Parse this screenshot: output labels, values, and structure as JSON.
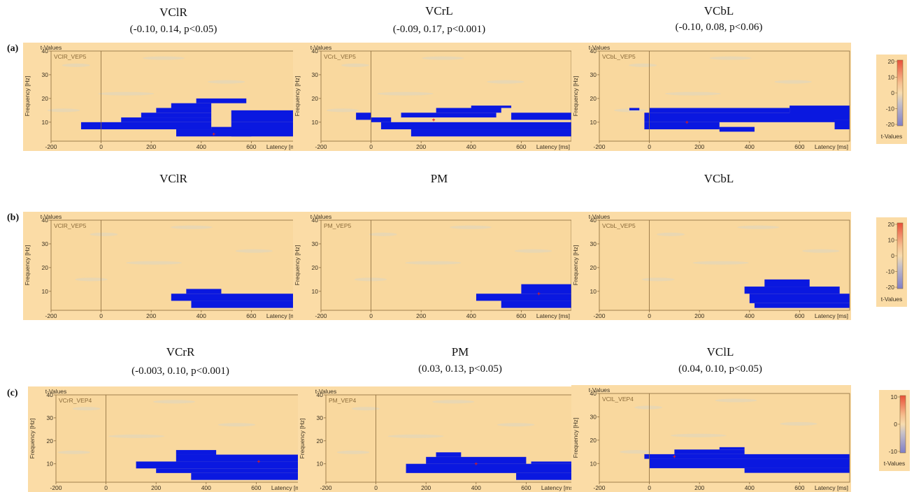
{
  "rows": [
    {
      "label": "(a)",
      "panels": [
        {
          "title": "VClR",
          "subtitle": "(-0.10, 0.14, p<0.05)",
          "inner_label": "VClR_VEP5"
        },
        {
          "title": "VCrL",
          "subtitle": "(-0.09, 0.17, p<0.001)",
          "inner_label": "VCrL_VEP5"
        },
        {
          "title": "VCbL",
          "subtitle": "(-0.10, 0.08, p<0.06)",
          "inner_label": "VCbL_VEP5"
        }
      ],
      "colorbar_ticks": [
        "20",
        "10",
        "0",
        "-10",
        "-20"
      ],
      "colorbar_label": "t-Values"
    },
    {
      "label": "(b)",
      "panels": [
        {
          "title": "VClR",
          "subtitle": "",
          "inner_label": "VClR_VEP5"
        },
        {
          "title": "PM",
          "subtitle": "",
          "inner_label": "PM_VEP5"
        },
        {
          "title": "VCbL",
          "subtitle": "",
          "inner_label": "VCbL_VEP5"
        }
      ],
      "colorbar_ticks": [
        "20",
        "10",
        "0",
        "-10",
        "-20"
      ],
      "colorbar_label": "t-Values"
    },
    {
      "label": "(c)",
      "panels": [
        {
          "title": "VCrR",
          "subtitle": "(-0.003, 0.10, p<0.001)",
          "inner_label": "VCrR_VEP4"
        },
        {
          "title": "PM",
          "subtitle": "(0.03, 0.13, p<0.05)",
          "inner_label": "PM_VEP4"
        },
        {
          "title": "VClL",
          "subtitle": "(0.04, 0.10, p<0.05)",
          "inner_label": "VClL_VEP4"
        }
      ],
      "colorbar_ticks": [
        "10",
        "0",
        "-10"
      ],
      "colorbar_label": "t-Values"
    }
  ],
  "axis_text": {
    "value_label": "t-Values",
    "ylabel": "Frequency [Hz]",
    "xlabel": "Latency [ms]",
    "x_ticks": [
      -200,
      0,
      200,
      400,
      600
    ],
    "y_ticks": [
      10,
      20,
      30,
      40
    ]
  },
  "colors": {
    "background": "#fbdca6",
    "plot_bg": "#f9d89e",
    "significant": "#0a18e0",
    "axis": "#8a6a3a",
    "marker": "#e0201a"
  },
  "chart_data": [
    {
      "type": "heatmap",
      "row": "a",
      "title": "VClR",
      "xlim": [
        -200,
        800
      ],
      "ylim": [
        2,
        40
      ],
      "significant_blocks": [
        [
          -80,
          440,
          7,
          10
        ],
        [
          80,
          440,
          10,
          12
        ],
        [
          160,
          440,
          12,
          14
        ],
        [
          220,
          440,
          14,
          16
        ],
        [
          280,
          440,
          16,
          18
        ],
        [
          380,
          580,
          18,
          20
        ],
        [
          520,
          800,
          10,
          15
        ],
        [
          520,
          800,
          4,
          10
        ],
        [
          300,
          600,
          4,
          7
        ],
        [
          440,
          600,
          7,
          8
        ]
      ],
      "marker": [
        450,
        5
      ]
    },
    {
      "type": "heatmap",
      "row": "a",
      "title": "VCrL",
      "xlim": [
        -200,
        800
      ],
      "ylim": [
        2,
        40
      ],
      "significant_blocks": [
        [
          -60,
          0,
          11,
          14
        ],
        [
          0,
          80,
          10,
          12
        ],
        [
          40,
          800,
          7,
          10
        ],
        [
          160,
          800,
          4,
          7
        ],
        [
          120,
          500,
          12,
          14
        ],
        [
          260,
          520,
          14,
          16
        ],
        [
          400,
          560,
          16,
          17
        ],
        [
          560,
          800,
          11,
          14
        ]
      ],
      "marker": [
        250,
        11
      ]
    },
    {
      "type": "heatmap",
      "row": "a",
      "title": "VCbL",
      "xlim": [
        -200,
        800
      ],
      "ylim": [
        2,
        40
      ],
      "significant_blocks": [
        [
          -80,
          -40,
          15,
          16
        ],
        [
          0,
          560,
          14,
          16
        ],
        [
          -20,
          740,
          10,
          14
        ],
        [
          -20,
          280,
          7,
          10
        ],
        [
          280,
          420,
          6,
          8
        ],
        [
          560,
          800,
          11,
          17
        ],
        [
          740,
          800,
          7,
          11
        ]
      ],
      "marker": [
        150,
        10
      ]
    },
    {
      "type": "heatmap",
      "row": "b",
      "title": "VClR",
      "xlim": [
        -200,
        800
      ],
      "ylim": [
        2,
        40
      ],
      "significant_blocks": [
        [
          280,
          800,
          6,
          9
        ],
        [
          340,
          480,
          9,
          11
        ],
        [
          360,
          800,
          3,
          6
        ]
      ]
    },
    {
      "type": "heatmap",
      "row": "b",
      "title": "PM",
      "xlim": [
        -200,
        800
      ],
      "ylim": [
        2,
        40
      ],
      "significant_blocks": [
        [
          420,
          800,
          6,
          9
        ],
        [
          520,
          800,
          3,
          6
        ],
        [
          600,
          800,
          9,
          13
        ]
      ],
      "marker": [
        670,
        9
      ]
    },
    {
      "type": "heatmap",
      "row": "b",
      "title": "VCbL",
      "xlim": [
        -200,
        800
      ],
      "ylim": [
        2,
        40
      ],
      "significant_blocks": [
        [
          380,
          760,
          9,
          12
        ],
        [
          460,
          640,
          12,
          15
        ],
        [
          400,
          800,
          5,
          9
        ],
        [
          420,
          800,
          3,
          5
        ]
      ]
    },
    {
      "type": "heatmap",
      "row": "c",
      "title": "VCrR",
      "xlim": [
        -200,
        800
      ],
      "ylim": [
        2,
        40
      ],
      "significant_blocks": [
        [
          120,
          780,
          8,
          11
        ],
        [
          200,
          780,
          6,
          8
        ],
        [
          280,
          800,
          11,
          14
        ],
        [
          340,
          800,
          3,
          6
        ],
        [
          280,
          440,
          14,
          16
        ]
      ],
      "marker": [
        610,
        11
      ]
    },
    {
      "type": "heatmap",
      "row": "c",
      "title": "PM",
      "xlim": [
        -200,
        800
      ],
      "ylim": [
        2,
        40
      ],
      "significant_blocks": [
        [
          120,
          800,
          6,
          10
        ],
        [
          200,
          600,
          10,
          13
        ],
        [
          240,
          340,
          13,
          15
        ],
        [
          560,
          800,
          3,
          6
        ],
        [
          620,
          800,
          10,
          11
        ]
      ],
      "marker": [
        400,
        10
      ]
    },
    {
      "type": "heatmap",
      "row": "c",
      "title": "VClL",
      "xlim": [
        -200,
        800
      ],
      "ylim": [
        2,
        40
      ],
      "significant_blocks": [
        [
          -20,
          800,
          12,
          14
        ],
        [
          0,
          800,
          8,
          12
        ],
        [
          100,
          380,
          14,
          16
        ],
        [
          280,
          380,
          16,
          17
        ],
        [
          380,
          800,
          6,
          8
        ]
      ],
      "marker": [
        100,
        13
      ]
    }
  ]
}
